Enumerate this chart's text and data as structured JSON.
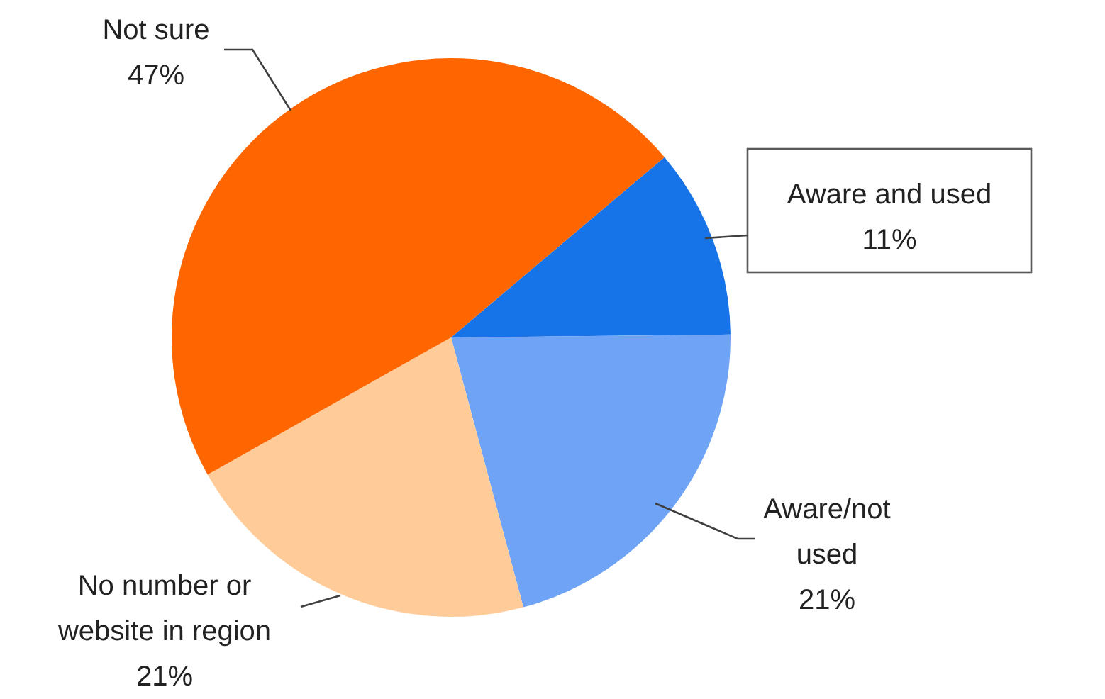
{
  "chart_data": {
    "type": "pie",
    "categories": [
      "Aware and used",
      "Aware/not used",
      "No number or website in region",
      "Not sure"
    ],
    "values": [
      11,
      21,
      21,
      47
    ],
    "value_labels": [
      "11%",
      "21%",
      "21%",
      "47%"
    ],
    "colors": [
      "#1773e8",
      "#6ea3f5",
      "#ffcc99",
      "#ff6600"
    ]
  }
}
